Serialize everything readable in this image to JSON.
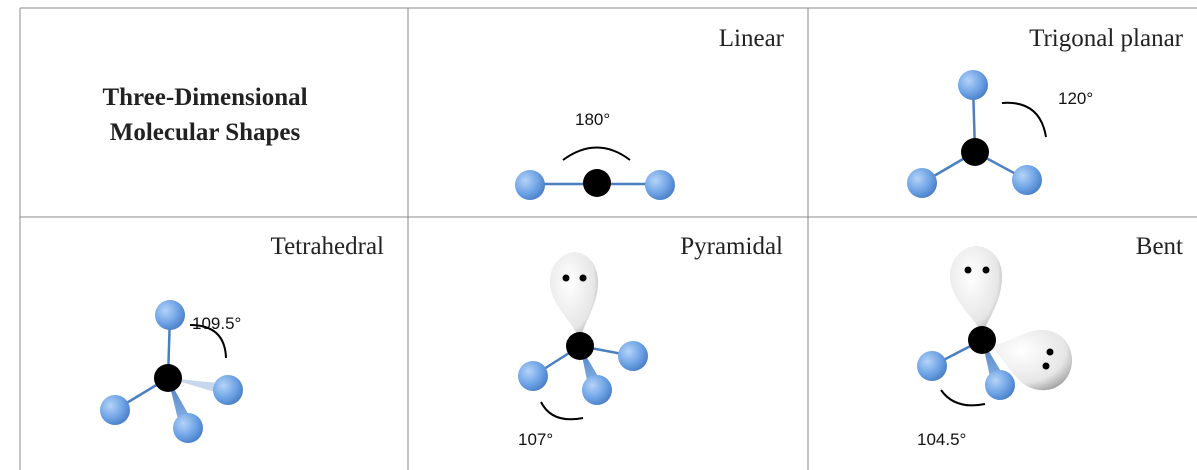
{
  "header": {
    "title_lines": [
      "Three-Dimensional",
      "Molecular Shapes"
    ]
  },
  "shapes": [
    {
      "name": "Linear",
      "angle": "180°"
    },
    {
      "name": "Trigonal planar",
      "angle": "120°"
    },
    {
      "name": "Tetrahedral",
      "angle": "109.5°"
    },
    {
      "name": "Pyramidal",
      "angle": "107°"
    },
    {
      "name": "Bent",
      "angle": "104.5°"
    }
  ]
}
